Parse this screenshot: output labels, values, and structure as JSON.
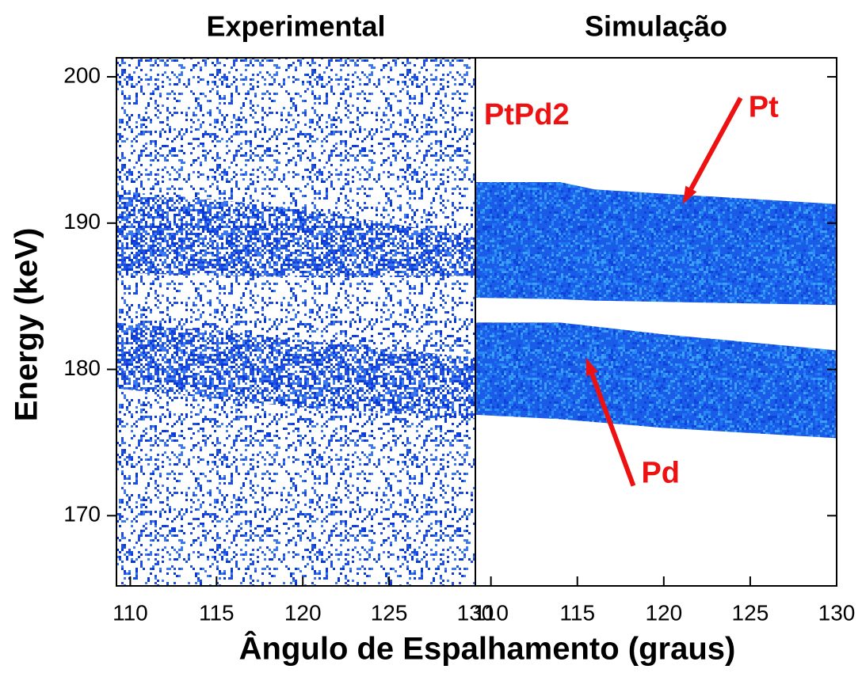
{
  "xlabel": "Ângulo de Espalhamento (graus)",
  "ylabel": "Energy (keV)",
  "chart_data": [
    {
      "type": "heatmap",
      "title": "Experimental",
      "texture": "sparse",
      "color": "#1f4fe0",
      "xlim": [
        109.2,
        130
      ],
      "xticks": [
        110,
        115,
        120,
        125,
        130
      ],
      "ylim": [
        165.2,
        201.3
      ],
      "yticks": [
        170,
        180,
        190,
        200
      ],
      "bands": [
        {
          "x": [
            109.2,
            115,
            120,
            125,
            130
          ],
          "upper": [
            192.2,
            191.6,
            190.9,
            190.0,
            189.0
          ],
          "lower": [
            186.6,
            186.4,
            186.3,
            186.3,
            186.4
          ]
        },
        {
          "x": [
            109.2,
            115,
            120,
            125,
            130
          ],
          "upper": [
            183.2,
            182.6,
            182.0,
            181.4,
            180.8
          ],
          "lower": [
            178.7,
            178.0,
            177.4,
            177.0,
            176.6
          ]
        }
      ]
    },
    {
      "type": "heatmap",
      "title": "Simulação",
      "texture": "dense",
      "color": "#1a5ce8",
      "xlim": [
        109.1,
        130
      ],
      "xticks": [
        110,
        115,
        120,
        125,
        130
      ],
      "ylim": [
        165.2,
        201.3
      ],
      "yticks": [
        170,
        180,
        190,
        200
      ],
      "bands": [
        {
          "name": "Pt",
          "x": [
            109.1,
            114,
            116,
            130
          ],
          "upper": [
            192.8,
            192.8,
            192.3,
            191.3
          ],
          "lower": [
            184.9,
            184.8,
            184.7,
            184.4
          ]
        },
        {
          "name": "Pd",
          "x": [
            109.1,
            114,
            120,
            130
          ],
          "upper": [
            183.2,
            183.2,
            182.4,
            181.3
          ],
          "lower": [
            176.9,
            176.6,
            176.0,
            175.3
          ]
        }
      ],
      "annotations": [
        {
          "text": "PtPd2",
          "x": 109.6,
          "y": 197.3
        },
        {
          "text": "Pt",
          "x": 124.9,
          "y": 197.8,
          "arrow_x": 121.1,
          "arrow_y": 191.3
        },
        {
          "text": "Pd",
          "x": 118.7,
          "y": 172.8,
          "arrow_x": 115.5,
          "arrow_y": 180.8
        }
      ]
    }
  ]
}
